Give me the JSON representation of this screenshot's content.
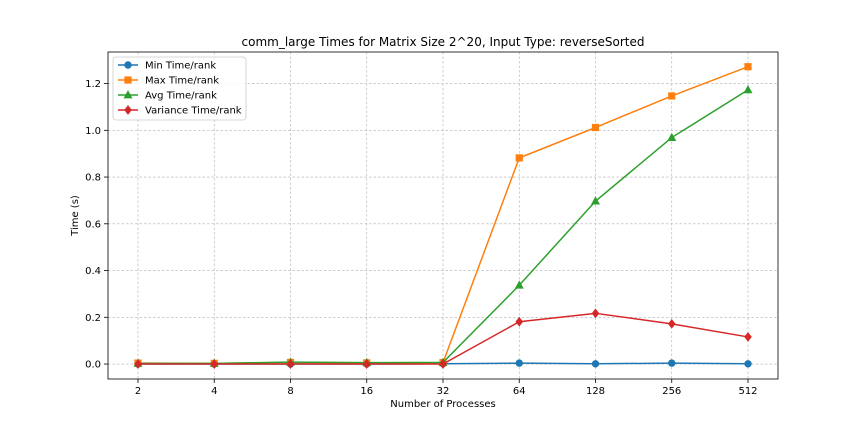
{
  "chart_data": {
    "type": "line",
    "title": "comm_large Times for Matrix Size 2^20, Input Type: reverseSorted",
    "xlabel": "Number of Processes",
    "ylabel": "Time (s)",
    "categories": [
      "2",
      "4",
      "8",
      "16",
      "32",
      "64",
      "128",
      "256",
      "512"
    ],
    "ylim": [
      -0.064,
      1.335
    ],
    "yticks": [
      "0.0",
      "0.2",
      "0.4",
      "0.6",
      "0.8",
      "1.0",
      "1.2"
    ],
    "grid": true,
    "legend_position": "top-left",
    "series": [
      {
        "name": "Min Time/rank",
        "color": "#1f77b4",
        "marker": "circle",
        "values": [
          0.0,
          0.0,
          0.0,
          0.0,
          0.001,
          0.004,
          0.001,
          0.004,
          0.001
        ]
      },
      {
        "name": "Max Time/rank",
        "color": "#ff7f0e",
        "marker": "square",
        "values": [
          0.004,
          0.003,
          0.007,
          0.005,
          0.006,
          0.882,
          1.012,
          1.147,
          1.272
        ]
      },
      {
        "name": "Avg Time/rank",
        "color": "#2ca02c",
        "marker": "triangle",
        "values": [
          0.003,
          0.003,
          0.008,
          0.006,
          0.007,
          0.337,
          0.697,
          0.969,
          1.173
        ]
      },
      {
        "name": "Variance Time/rank",
        "color": "#d62728",
        "marker": "diamond",
        "values": [
          0.0,
          0.0,
          0.0,
          0.0,
          0.0,
          0.181,
          0.217,
          0.172,
          0.116
        ]
      }
    ]
  }
}
